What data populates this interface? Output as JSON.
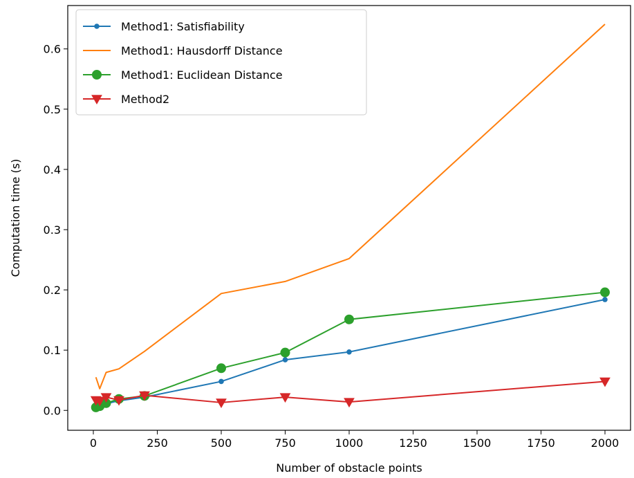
{
  "chart_data": {
    "type": "line",
    "title": "",
    "xlabel": "Number of obstacle points",
    "ylabel": "Computation time (s)",
    "xlim": [
      -100,
      2100
    ],
    "ylim": [
      -0.033,
      0.672
    ],
    "xticks": [
      0,
      250,
      500,
      750,
      1000,
      1250,
      1500,
      1750,
      2000
    ],
    "yticks": [
      0.0,
      0.1,
      0.2,
      0.3,
      0.4,
      0.5,
      0.6
    ],
    "xtick_labels": [
      "0",
      "250",
      "500",
      "750",
      "1000",
      "1250",
      "1500",
      "1750",
      "2000"
    ],
    "ytick_labels": [
      "0.0",
      "0.1",
      "0.2",
      "0.3",
      "0.4",
      "0.5",
      "0.6"
    ],
    "grid": false,
    "legend_position": "top-left",
    "series": [
      {
        "name": "Method1: Satisfiability",
        "color": "#1f77b4",
        "marker": "small-circle",
        "x": [
          10,
          25,
          50,
          100,
          200,
          500,
          750,
          1000,
          2000
        ],
        "y": [
          0.005,
          0.008,
          0.011,
          0.016,
          0.022,
          0.048,
          0.084,
          0.097,
          0.184
        ]
      },
      {
        "name": "Method1: Hausdorff Distance",
        "color": "#ff7f0e",
        "marker": "none",
        "x": [
          10,
          25,
          50,
          100,
          200,
          500,
          750,
          1000,
          2000
        ],
        "y": [
          0.055,
          0.036,
          0.063,
          0.069,
          0.098,
          0.194,
          0.214,
          0.252,
          0.641
        ]
      },
      {
        "name": "Method1: Euclidean Distance",
        "color": "#2ca02c",
        "marker": "circle",
        "x": [
          10,
          25,
          50,
          100,
          200,
          500,
          750,
          1000,
          2000
        ],
        "y": [
          0.005,
          0.007,
          0.012,
          0.019,
          0.024,
          0.07,
          0.096,
          0.151,
          0.196
        ]
      },
      {
        "name": "Method2",
        "color": "#d62728",
        "marker": "triangle-down",
        "x": [
          10,
          25,
          50,
          100,
          200,
          500,
          750,
          1000,
          2000
        ],
        "y": [
          0.017,
          0.016,
          0.022,
          0.017,
          0.025,
          0.013,
          0.022,
          0.014,
          0.048
        ]
      }
    ]
  }
}
